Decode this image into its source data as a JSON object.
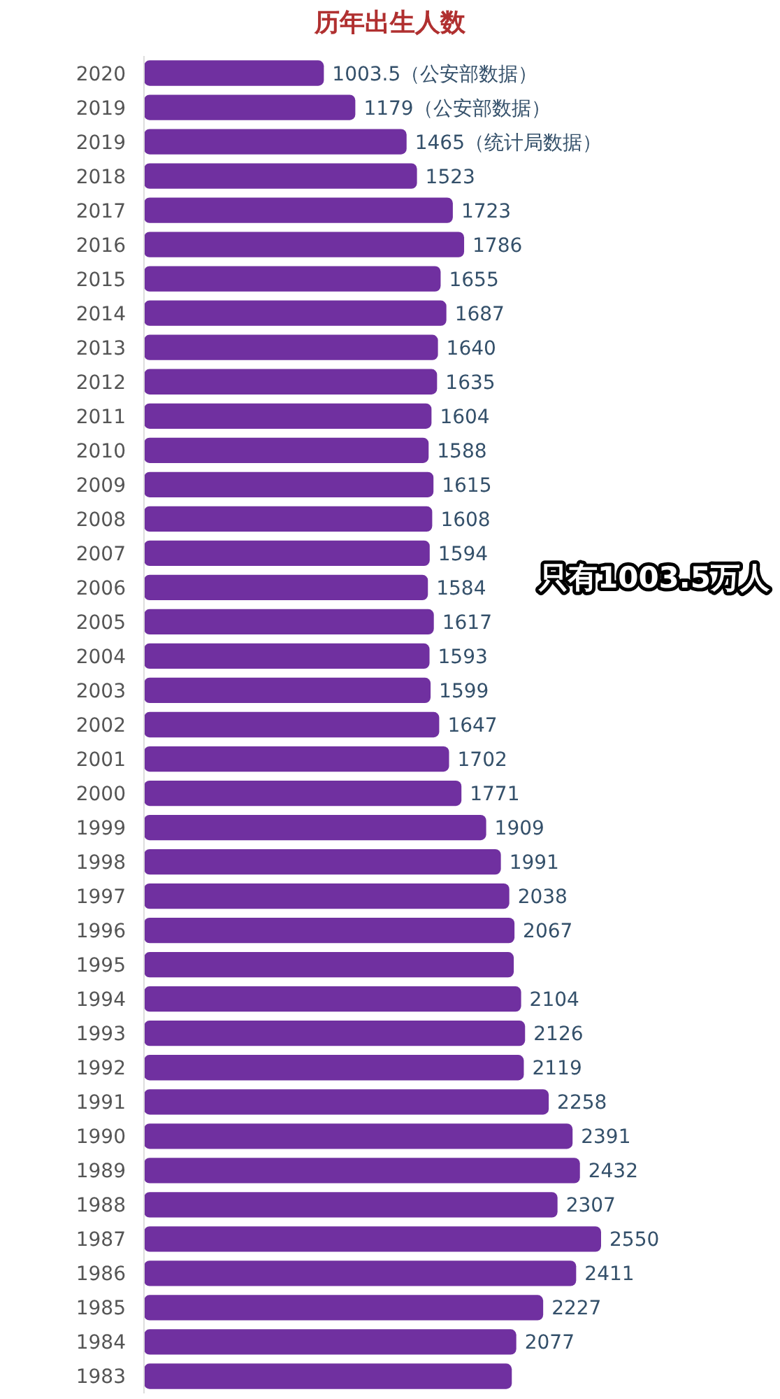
{
  "chart_data": {
    "type": "bar",
    "orientation": "horizontal",
    "title": "历年出生人数",
    "categories": [
      "2020",
      "2019",
      "2019",
      "2018",
      "2017",
      "2016",
      "2015",
      "2014",
      "2013",
      "2012",
      "2011",
      "2010",
      "2009",
      "2008",
      "2007",
      "2006",
      "2005",
      "2004",
      "2003",
      "2002",
      "2001",
      "2000",
      "1999",
      "1998",
      "1997",
      "1996",
      "1995",
      "1994",
      "1993",
      "1992",
      "1991",
      "1990",
      "1989",
      "1988",
      "1987",
      "1986",
      "1985",
      "1984",
      "1983"
    ],
    "values": [
      1003.5,
      1179,
      1465,
      1523,
      1723,
      1786,
      1655,
      1687,
      1640,
      1635,
      1604,
      1588,
      1615,
      1608,
      1594,
      1584,
      1617,
      1593,
      1599,
      1647,
      1702,
      1771,
      1909,
      1991,
      2038,
      2067,
      2063,
      2104,
      2126,
      2119,
      2258,
      2391,
      2432,
      2307,
      2550,
      2411,
      2227,
      2077,
      2052
    ],
    "value_labels": [
      "1003.5（公安部数据）",
      "1179（公安部数据）",
      "1465（统计局数据）",
      "1523",
      "1723",
      "1786",
      "1655",
      "1687",
      "1640",
      "1635",
      "1604",
      "1588",
      "1615",
      "1608",
      "1594",
      "1584",
      "1617",
      "1593",
      "1599",
      "1647",
      "1702",
      "1771",
      "1909",
      "1991",
      "2038",
      "2067",
      null,
      "2104",
      "2126",
      "2119",
      "2258",
      "2391",
      "2432",
      "2307",
      "2550",
      "2411",
      "2227",
      "2077",
      null
    ],
    "color": "#7030a0",
    "annotations": [
      "只有1003.5万人"
    ]
  }
}
